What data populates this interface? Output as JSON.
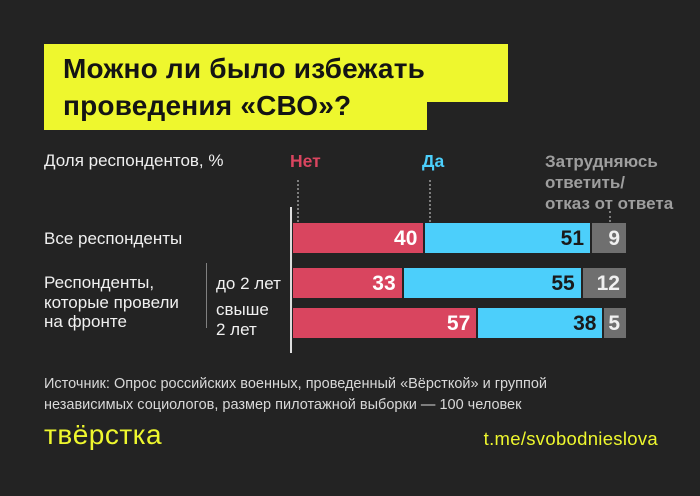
{
  "colors": {
    "background": "#232323",
    "accent_yellow": "#eef72e",
    "no_red": "#d9455f",
    "yes_blue": "#4ccffb",
    "na_gray": "#6f6f6f",
    "text_white": "#f0f0f0",
    "legend_gray_text": "#9e9e9e"
  },
  "title": {
    "line1": "Можно ли было избежать",
    "line2": "проведения «СВО»?"
  },
  "axis_label": "Доля респондентов, %",
  "legend": {
    "no": "Нет",
    "yes": "Да",
    "na": "Затрудняюсь\nответить/\nотказ от ответа"
  },
  "row_labels": {
    "all": "Все респонденты",
    "group": "Респонденты,\nкоторые провели\nна фронте",
    "sub1": "до 2 лет",
    "sub2": "свыше\n2 лет"
  },
  "chart_data": {
    "type": "bar",
    "orientation": "horizontal",
    "stacked": true,
    "unit": "%",
    "xlim": [
      0,
      100
    ],
    "categories": [
      "Все респонденты",
      "Респонденты, которые провели на фронте — до 2 лет",
      "Респонденты, которые провели на фронте — свыше 2 лет"
    ],
    "series": [
      {
        "name": "Нет",
        "color": "#d9455f",
        "value_color": "#ffffff",
        "values": [
          40,
          33,
          57
        ]
      },
      {
        "name": "Да",
        "color": "#4ccffb",
        "value_color": "#1a1a1a",
        "values": [
          51,
          55,
          38
        ]
      },
      {
        "name": "Затрудняюсь ответить/отказ от ответа",
        "color": "#6f6f6f",
        "value_color": "#f0f0f0",
        "values": [
          9,
          12,
          5
        ]
      }
    ]
  },
  "source": "Источник: Опрос российских военных, проведенный «Вёрсткой» и группой\nнезависимых социологов, размер пилотажной выборки — 100 человек",
  "footer": {
    "logo": "твёрстка",
    "link": "t.me/svobodnieslova"
  }
}
